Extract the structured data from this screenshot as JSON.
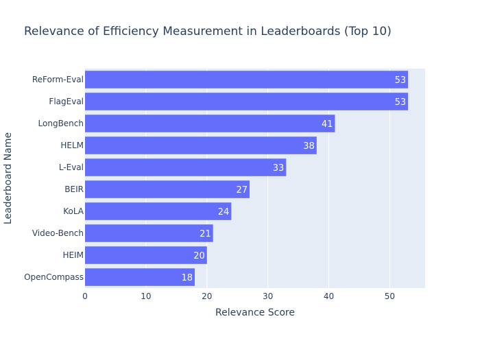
{
  "chart_data": {
    "type": "bar",
    "orientation": "horizontal",
    "title": "Relevance of Efficiency Measurement in Leaderboards (Top 10)",
    "xlabel": "Relevance Score",
    "ylabel": "Leaderboard Name",
    "xlim": [
      0,
      55.8
    ],
    "x_ticks": [
      0,
      10,
      20,
      30,
      40,
      50
    ],
    "grid": true,
    "bar_color": "#636efa",
    "categories": [
      "ReForm-Eval",
      "FlagEval",
      "LongBench",
      "HELM",
      "L-Eval",
      "BEIR",
      "KoLA",
      "Video-Bench",
      "HEIM",
      "OpenCompass"
    ],
    "values": [
      53,
      53,
      41,
      38,
      33,
      27,
      24,
      21,
      20,
      18
    ]
  }
}
